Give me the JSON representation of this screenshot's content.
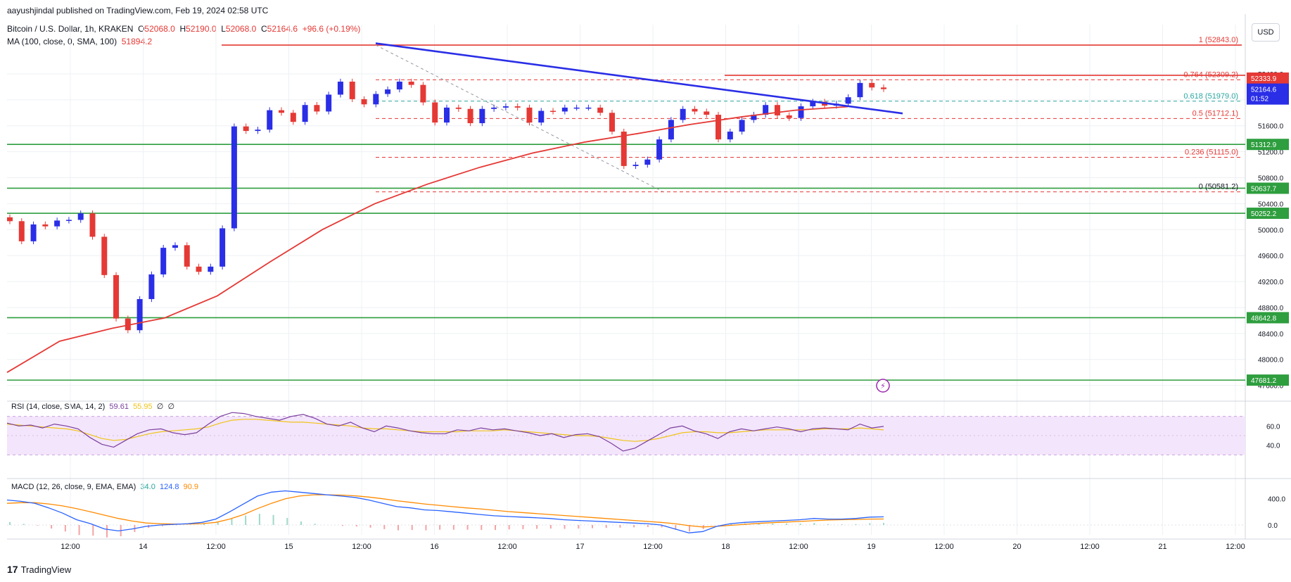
{
  "publisher": "aayushjindal published on TradingView.com, Feb 19, 2024 02:58 UTC",
  "symbol": {
    "name": "Bitcoin / U.S. Dollar, 1h, KRAKEN",
    "open_label": "O",
    "open": "52068.0",
    "high_label": "H",
    "high": "52190.0",
    "low_label": "L",
    "low": "52068.0",
    "close_label": "C",
    "close": "52164.6",
    "change": "+96.6 (+0.19%)"
  },
  "ma": {
    "label": "MA (100, close, 0, SMA, 100)",
    "value": "51894.2"
  },
  "currency": "USD",
  "rsi_header": {
    "label": "RSI (14, close, SMA, 14, 2)",
    "v1": "59.61",
    "v2": "55.95",
    "v3": "∅",
    "v4": "∅"
  },
  "macd_header": {
    "label": "MACD (12, 26, close, 9, EMA, EMA)",
    "v1": "34.0",
    "v2": "124.8",
    "v3": "90.9"
  },
  "branding": "TradingView",
  "colors": {
    "up": "#2a2ee6",
    "down": "#e53935",
    "ma": "#e53935",
    "trend": "#2a2ee6",
    "support": "#2e9e3e",
    "rsi": "#7b3f9e",
    "macd": "#2962ff",
    "signal": "#ff8a00"
  },
  "chart_data": {
    "type": "candlestick",
    "ylim": [
      47520,
      53050
    ],
    "y_ticks": [
      47600,
      48000,
      48400,
      48800,
      49200,
      49600,
      50000,
      50400,
      50800,
      51200,
      51600,
      52000,
      52400
    ],
    "x_ticks": [
      "12:00",
      "14",
      "12:00",
      "15",
      "12:00",
      "16",
      "12:00",
      "17",
      "12:00",
      "18",
      "12:00",
      "19",
      "12:00",
      "20",
      "12:00",
      "21",
      "12:00"
    ],
    "candles_close": [
      50130,
      49820,
      50080,
      50050,
      50140,
      50150,
      50250,
      49890,
      49300,
      48630,
      48450,
      48930,
      49310,
      49720,
      49760,
      49430,
      49350,
      49430,
      50020,
      51590,
      51520,
      51540,
      51840,
      51800,
      51660,
      51920,
      51820,
      52080,
      52280,
      52010,
      51930,
      52090,
      52160,
      52280,
      52230,
      51960,
      51650,
      51880,
      51860,
      51640,
      51860,
      51880,
      51900,
      51880,
      51650,
      51830,
      51820,
      51880,
      51880,
      51880,
      51800,
      51510,
      50980,
      51000,
      51080,
      51390,
      51690,
      51860,
      51820,
      51770,
      51390,
      51510,
      51690,
      51770,
      51920,
      51760,
      51720,
      51900,
      51970,
      51910,
      51940,
      52040,
      52260,
      52190,
      52164.6
    ],
    "ma100": [
      47800,
      48280,
      48480,
      48640,
      48980,
      49500,
      50000,
      50400,
      50700,
      50960,
      51180,
      51350,
      51480,
      51620,
      51740,
      51840,
      51894.2
    ],
    "trendline": {
      "from": 52870,
      "to": 51790
    },
    "fib_levels": [
      {
        "ratio": "1",
        "value": 52843.0,
        "text": "(52843.0)"
      },
      {
        "ratio": "0.764",
        "value": 52309.2,
        "text": "(52309.2)"
      },
      {
        "ratio": "0.618",
        "value": 51979.0,
        "text": "(51979.0)"
      },
      {
        "ratio": "0.5",
        "value": 51712.1,
        "text": "(51712.1)"
      },
      {
        "ratio": "0.236",
        "value": 51115.0,
        "text": "(51115.0)"
      },
      {
        "ratio": "0",
        "value": 50581.2,
        "text": "(50581.2)"
      }
    ],
    "support_levels": [
      {
        "value": 51312.9,
        "label": "51312.9"
      },
      {
        "value": 50637.7,
        "label": "50637.7"
      },
      {
        "value": 50252.2,
        "label": "50252.2"
      },
      {
        "value": 48642.8,
        "label": "48642.8"
      },
      {
        "value": 47681.2,
        "label": "47681.2"
      }
    ],
    "price_tags": [
      {
        "value": 52333.9,
        "label": "52333.9",
        "color": "#e53935"
      },
      {
        "value": 52164.6,
        "label": "52164.6",
        "sub": "01:52",
        "color": "#2a2ee6"
      }
    ],
    "rsi": {
      "ylim": [
        20,
        80
      ],
      "ticks": [
        40.0,
        60.0
      ],
      "band": [
        30,
        70
      ],
      "values": [
        63,
        60,
        61,
        58,
        62,
        60,
        57,
        48,
        41,
        38,
        45,
        52,
        56,
        57,
        53,
        51,
        53,
        62,
        70,
        74,
        73,
        70,
        68,
        66,
        70,
        72,
        68,
        62,
        60,
        64,
        58,
        54,
        60,
        58,
        55,
        53,
        52,
        52,
        56,
        55,
        58,
        56,
        57,
        55,
        53,
        50,
        52,
        48,
        51,
        52,
        49,
        42,
        34,
        37,
        44,
        51,
        58,
        60,
        55,
        52,
        47,
        54,
        57,
        55,
        57,
        59,
        57,
        54,
        57,
        58,
        57,
        56,
        62,
        58,
        59.61
      ],
      "ma_values": [
        62,
        61,
        60,
        59,
        58,
        57,
        55,
        51,
        47,
        45,
        46,
        49,
        52,
        54,
        55,
        56,
        57,
        59,
        63,
        66,
        67,
        67,
        66,
        65,
        64,
        64,
        63,
        62,
        61,
        60,
        58,
        57,
        57,
        56,
        55,
        54,
        54,
        54,
        54,
        55,
        55,
        55,
        56,
        55,
        54,
        53,
        52,
        51,
        50,
        50,
        49,
        47,
        45,
        44,
        45,
        47,
        50,
        53,
        54,
        54,
        53,
        53,
        54,
        55,
        56,
        56,
        56,
        56,
        56,
        57,
        57,
        57,
        58,
        57,
        55.95
      ]
    },
    "macd": {
      "ylim": [
        -150,
        600
      ],
      "ticks": [
        0.0,
        400.0
      ],
      "macd": [
        380,
        360,
        330,
        260,
        180,
        80,
        20,
        -60,
        -90,
        -60,
        -20,
        0,
        10,
        20,
        40,
        90,
        200,
        320,
        440,
        500,
        520,
        500,
        480,
        460,
        440,
        420,
        380,
        330,
        280,
        260,
        230,
        220,
        200,
        180,
        160,
        140,
        130,
        120,
        110,
        100,
        80,
        70,
        60,
        50,
        40,
        30,
        20,
        0,
        -60,
        -120,
        -100,
        -20,
        20,
        40,
        50,
        60,
        70,
        80,
        100,
        90,
        90,
        100,
        120,
        124.8
      ],
      "signal": [
        330,
        340,
        340,
        320,
        290,
        250,
        200,
        150,
        100,
        60,
        30,
        20,
        15,
        15,
        20,
        40,
        90,
        160,
        250,
        330,
        400,
        440,
        460,
        460,
        455,
        445,
        425,
        400,
        370,
        345,
        320,
        300,
        280,
        260,
        245,
        225,
        205,
        190,
        175,
        160,
        145,
        130,
        115,
        100,
        85,
        70,
        55,
        40,
        20,
        -10,
        -30,
        -20,
        -5,
        10,
        25,
        35,
        45,
        55,
        65,
        75,
        80,
        85,
        90,
        90.9
      ]
    }
  }
}
